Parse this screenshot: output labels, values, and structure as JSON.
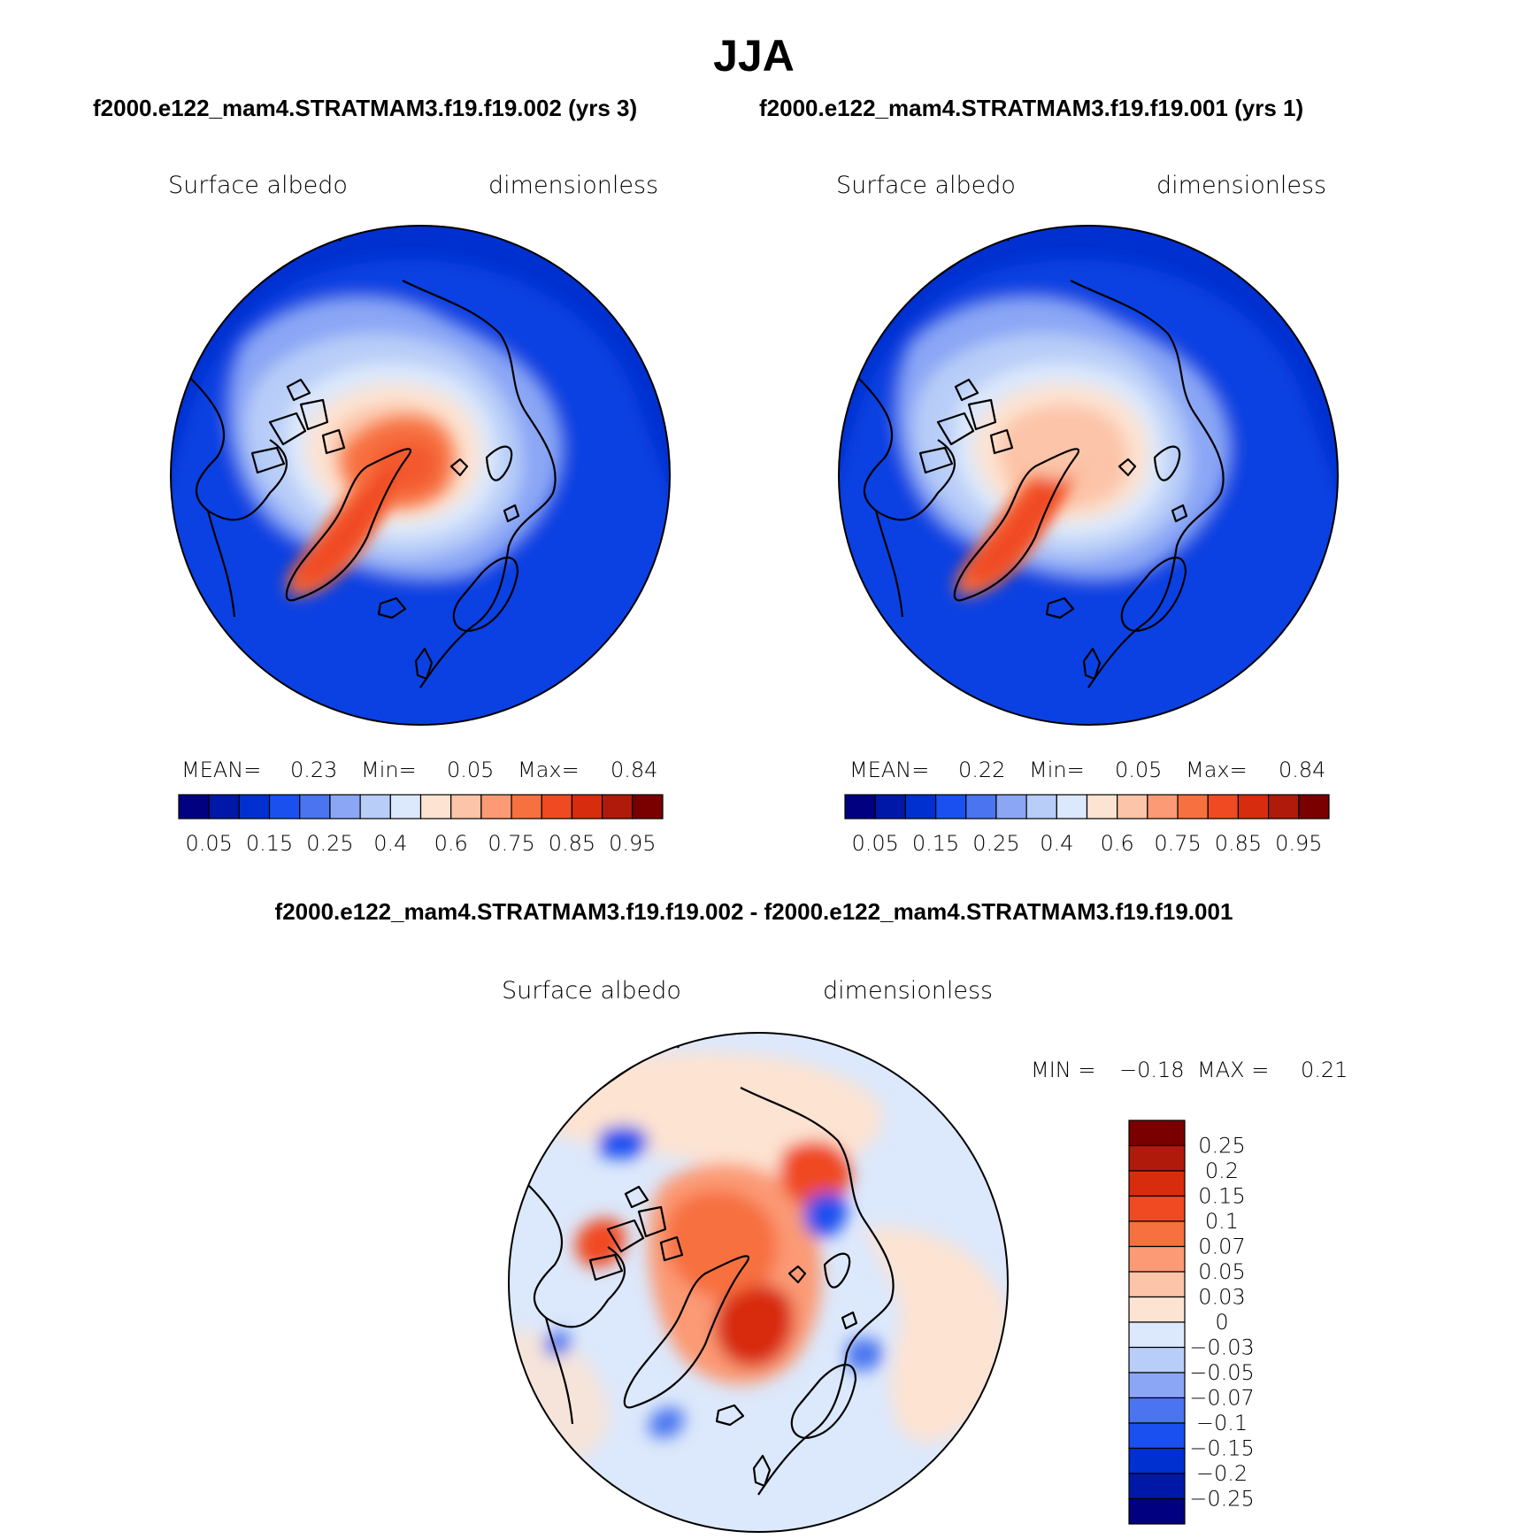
{
  "figure": {
    "title": "JJA",
    "subtitle_left": "f2000.e122_mam4.STRATMAM3.f19.f19.002 (yrs 3)",
    "subtitle_right": "f2000.e122_mam4.STRATMAM3.f19.f19.001 (yrs 1)",
    "diff_title": "f2000.e122_mam4.STRATMAM3.f19.f19.002 - f2000.e122_mam4.STRATMAM3.f19.f19.001"
  },
  "chart_data": [
    {
      "type": "heatmap",
      "projection": "polar-stereographic-north",
      "variable_label": "Surface albedo",
      "units_label": "dimensionless",
      "stats": {
        "mean_label": "MEAN=",
        "mean": "0.23",
        "min_label": "Min=",
        "min": "0.05",
        "max_label": "Max=",
        "max": "0.84"
      },
      "levels": [
        "0.05",
        "0.15",
        "0.25",
        "0.4",
        "0.6",
        "0.75",
        "0.85",
        "0.95"
      ],
      "colors": [
        "#000080",
        "#0018a8",
        "#0030d0",
        "#1a50f0",
        "#4a74f0",
        "#8aa6f5",
        "#b8cdf8",
        "#dce8fb",
        "#fde3d2",
        "#fcc4a8",
        "#fb9a74",
        "#f7703f",
        "#f04a22",
        "#d82c0e",
        "#b01a0a",
        "#7a0000"
      ]
    },
    {
      "type": "heatmap",
      "projection": "polar-stereographic-north",
      "variable_label": "Surface albedo",
      "units_label": "dimensionless",
      "stats": {
        "mean_label": "MEAN=",
        "mean": "0.22",
        "min_label": "Min=",
        "min": "0.05",
        "max_label": "Max=",
        "max": "0.84"
      },
      "levels": [
        "0.05",
        "0.15",
        "0.25",
        "0.4",
        "0.6",
        "0.75",
        "0.85",
        "0.95"
      ],
      "colors": [
        "#000080",
        "#0018a8",
        "#0030d0",
        "#1a50f0",
        "#4a74f0",
        "#8aa6f5",
        "#b8cdf8",
        "#dce8fb",
        "#fde3d2",
        "#fcc4a8",
        "#fb9a74",
        "#f7703f",
        "#f04a22",
        "#d82c0e",
        "#b01a0a",
        "#7a0000"
      ]
    },
    {
      "type": "heatmap",
      "projection": "polar-stereographic-north",
      "variable_label": "Surface albedo",
      "units_label": "dimensionless",
      "stats": {
        "min_label": "MIN =",
        "min": "−0.18",
        "max_label": "MAX =",
        "max": "0.21"
      },
      "levels": [
        "0.25",
        "0.2",
        "0.15",
        "0.1",
        "0.07",
        "0.05",
        "0.03",
        "0",
        "−0.03",
        "−0.05",
        "−0.07",
        "−0.1",
        "−0.15",
        "−0.2",
        "−0.25"
      ],
      "colors": [
        "#7a0000",
        "#b01a0a",
        "#d82c0e",
        "#f04a22",
        "#f7703f",
        "#fb9a74",
        "#fcc4a8",
        "#fde3d2",
        "#dce8fb",
        "#b8cdf8",
        "#8aa6f5",
        "#4a74f0",
        "#1a50f0",
        "#0030d0",
        "#0018a8",
        "#000080"
      ]
    }
  ]
}
